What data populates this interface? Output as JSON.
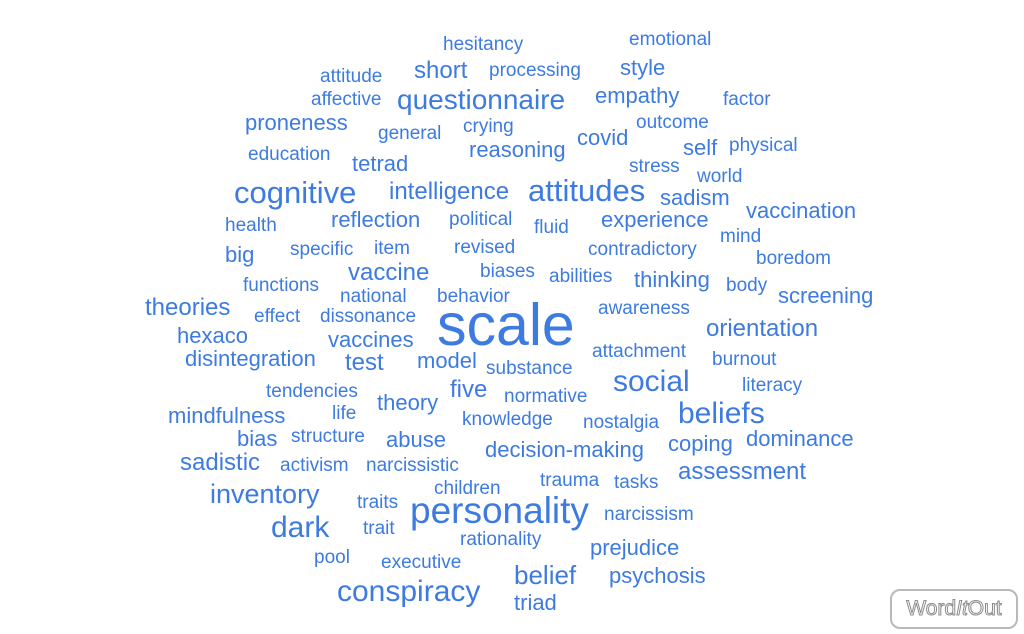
{
  "word_color": "#3d7be0",
  "words": [
    "hesitancy",
    "emotional",
    "attitude",
    "short",
    "processing",
    "style",
    "affective",
    "questionnaire",
    "empathy",
    "factor",
    "proneness",
    "crying",
    "outcome",
    "general",
    "covid",
    "education",
    "tetrad",
    "reasoning",
    "self",
    "physical",
    "stress",
    "world",
    "cognitive",
    "intelligence",
    "attitudes",
    "sadism",
    "health",
    "reflection",
    "political",
    "fluid",
    "experience",
    "vaccination",
    "mind",
    "big",
    "specific",
    "item",
    "revised",
    "contradictory",
    "boredom",
    "vaccine",
    "biases",
    "functions",
    "abilities",
    "thinking",
    "body",
    "national",
    "behavior",
    "screening",
    "theories",
    "effect",
    "dissonance",
    "scale",
    "awareness",
    "hexaco",
    "vaccines",
    "orientation",
    "disintegration",
    "attachment",
    "test",
    "model",
    "substance",
    "burnout",
    "social",
    "tendencies",
    "five",
    "normative",
    "literacy",
    "theory",
    "mindfulness",
    "life",
    "beliefs",
    "knowledge",
    "nostalgia",
    "bias",
    "structure",
    "abuse",
    "coping",
    "dominance",
    "decision-making",
    "sadistic",
    "activism",
    "narcissistic",
    "assessment",
    "trauma",
    "tasks",
    "inventory",
    "children",
    "traits",
    "personality",
    "dark",
    "narcissism",
    "trait",
    "rationality",
    "prejudice",
    "pool",
    "executive",
    "conspiracy",
    "belief",
    "psychosis",
    "triad"
  ],
  "logo": {
    "part1": "Word",
    "part2": "It",
    "part3": "Out"
  }
}
